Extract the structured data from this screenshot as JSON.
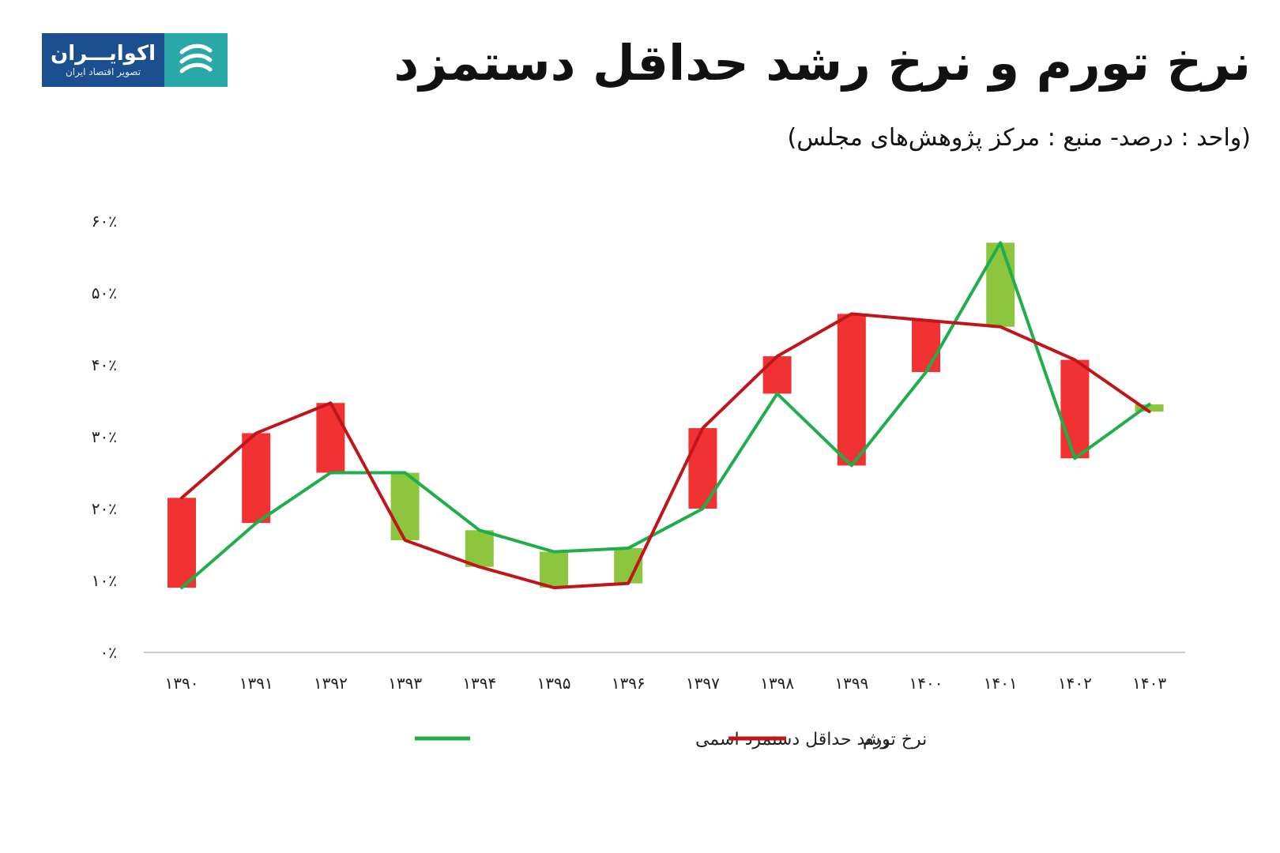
{
  "header": {
    "title": "نرخ تورم و نرخ رشد حداقل دستمزد",
    "subtitle": "(واحد : درصد- منبع : مرکز پژوهش‌های مجلس)"
  },
  "logo": {
    "name": "اکوایـــران",
    "tagline": "تصویر اقتصاد ایران",
    "bg_color": "#1c4f8f",
    "mark_color": "#2aa8a8",
    "icon": "ecoiran-logo-icon"
  },
  "colors": {
    "inflation": "#c0151b",
    "wage": "#1fae4b",
    "bar_up": "#f03232",
    "bar_down": "#8cc63f",
    "axis": "#cccccc"
  },
  "chart_data": {
    "type": "line",
    "title": "نرخ تورم و نرخ رشد حداقل دستمزد",
    "categories": [
      "۱۳۹۰",
      "۱۳۹۱",
      "۱۳۹۲",
      "۱۳۹۳",
      "۱۳۹۴",
      "۱۳۹۵",
      "۱۳۹۶",
      "۱۳۹۷",
      "۱۳۹۸",
      "۱۳۹۹",
      "۱۴۰۰",
      "۱۴۰۱",
      "۱۴۰۲",
      "۱۴۰۳"
    ],
    "series": [
      {
        "name": "نرخ تورم",
        "values": [
          21.5,
          30.5,
          34.7,
          15.6,
          11.9,
          9.0,
          9.6,
          31.2,
          41.2,
          47.1,
          46.2,
          45.3,
          40.7,
          33.5
        ]
      },
      {
        "name": "رشد حداقل دستمزد اسمی",
        "values": [
          9.0,
          18.0,
          25.0,
          25.0,
          17.0,
          14.0,
          14.5,
          20.0,
          36.0,
          26.0,
          39.0,
          57.0,
          27.0,
          34.5
        ]
      }
    ],
    "ylim": [
      0,
      60
    ],
    "yticks": [
      "۰٪",
      "۱۰٪",
      "۲۰٪",
      "۳۰٪",
      "۴۰٪",
      "۵۰٪",
      "۶۰٪"
    ],
    "ytick_values": [
      0,
      10,
      20,
      30,
      40,
      50,
      60
    ],
    "xlabel": "",
    "ylabel": "",
    "grid": false,
    "legend_position": "bottom"
  }
}
